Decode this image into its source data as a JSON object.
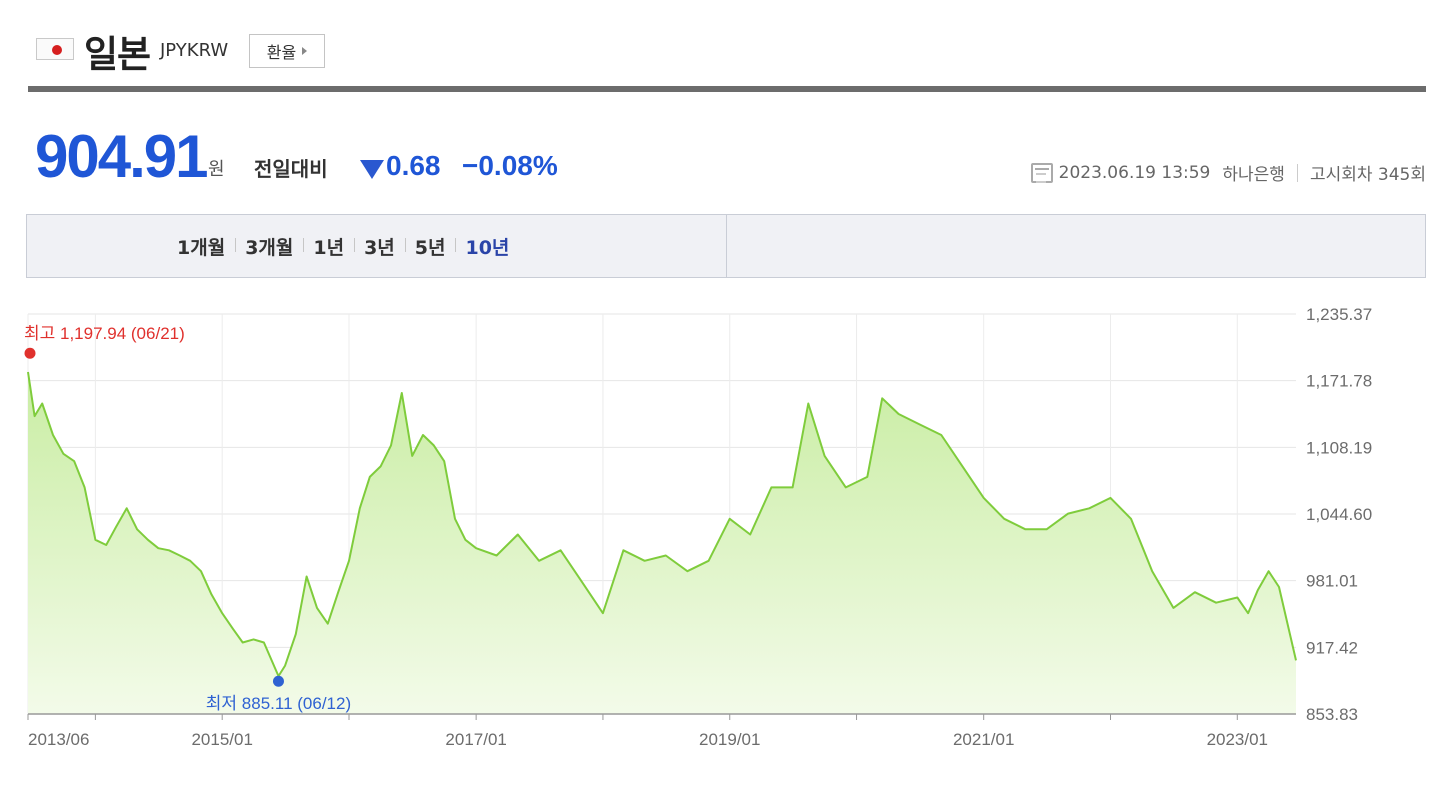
{
  "header": {
    "flag_icon": "japan-flag-icon",
    "country": "일본",
    "code": "JPYKRW",
    "rate_button": "환율"
  },
  "quote": {
    "price": "904.91",
    "unit": "원",
    "compare_label": "전일대비",
    "direction": "down",
    "change": "0.68",
    "change_pct": "−0.08%",
    "change_color": "#1f56d6"
  },
  "meta": {
    "datetime": "2023.06.19 13:59",
    "bank": "하나은행",
    "notice": "고시회차 345회"
  },
  "period_tabs": [
    {
      "label": "1개월",
      "active": false
    },
    {
      "label": "3개월",
      "active": false
    },
    {
      "label": "1년",
      "active": false
    },
    {
      "label": "3년",
      "active": false
    },
    {
      "label": "5년",
      "active": false
    },
    {
      "label": "10년",
      "active": true
    }
  ],
  "chart_data": {
    "type": "area",
    "title": "",
    "xlabel": "",
    "ylabel": "",
    "line_color": "#7fcc3c",
    "fill_top": "#c9eda3",
    "fill_bottom": "#f3fbe9",
    "ylim": [
      853.83,
      1235.37
    ],
    "y_ticks": [
      "1,235.37",
      "1,171.78",
      "1,108.19",
      "1,044.60",
      "981.01",
      "917.42",
      "853.83"
    ],
    "y_tick_values": [
      1235.37,
      1171.78,
      1108.19,
      1044.6,
      981.01,
      917.42,
      853.83
    ],
    "x_range": [
      "2013-06-21",
      "2023-06-19"
    ],
    "x_ticks": [
      "2013/06",
      "2015/01",
      "2017/01",
      "2019/01",
      "2021/01",
      "2023/01"
    ],
    "x_tick_dates": [
      "2013-06-01",
      "2015-01-01",
      "2017-01-01",
      "2019-01-01",
      "2021-01-01",
      "2023-01-01"
    ],
    "x_minor_dates": [
      "2014-01-01",
      "2016-01-01",
      "2018-01-01",
      "2020-01-01",
      "2022-01-01"
    ],
    "grid": true,
    "high": {
      "label": "최고 1,197.94 (06/21)",
      "date": "2013-06-21",
      "value": 1197.94,
      "color": "#e0312d"
    },
    "low": {
      "label": "최저 885.11 (06/12)",
      "date": "2015-06-12",
      "value": 885.11,
      "color": "#2f62d2"
    },
    "series": [
      {
        "dates": [
          "2013-06-21",
          "2013-07-10",
          "2013-08-01",
          "2013-09-01",
          "2013-10-01",
          "2013-11-01",
          "2013-12-01",
          "2014-01-01",
          "2014-02-01",
          "2014-03-01",
          "2014-04-01",
          "2014-05-01",
          "2014-06-01",
          "2014-07-01",
          "2014-08-01",
          "2014-09-01",
          "2014-10-01",
          "2014-11-01",
          "2014-12-01",
          "2015-01-01",
          "2015-02-01",
          "2015-03-01",
          "2015-04-01",
          "2015-05-01",
          "2015-06-12",
          "2015-07-01",
          "2015-08-01",
          "2015-09-01",
          "2015-10-01",
          "2015-11-01",
          "2015-12-01",
          "2016-01-01",
          "2016-02-01",
          "2016-03-01",
          "2016-04-01",
          "2016-05-01",
          "2016-06-01",
          "2016-07-01",
          "2016-08-01",
          "2016-09-01",
          "2016-10-01",
          "2016-11-01",
          "2016-12-01",
          "2017-01-01",
          "2017-03-01",
          "2017-05-01",
          "2017-07-01",
          "2017-09-01",
          "2017-11-01",
          "2018-01-01",
          "2018-03-01",
          "2018-05-01",
          "2018-07-01",
          "2018-09-01",
          "2018-11-01",
          "2019-01-01",
          "2019-03-01",
          "2019-05-01",
          "2019-07-01",
          "2019-08-15",
          "2019-10-01",
          "2019-12-01",
          "2020-02-01",
          "2020-03-15",
          "2020-05-01",
          "2020-07-01",
          "2020-09-01",
          "2020-11-01",
          "2021-01-01",
          "2021-03-01",
          "2021-05-01",
          "2021-07-01",
          "2021-09-01",
          "2021-11-01",
          "2022-01-01",
          "2022-03-01",
          "2022-05-01",
          "2022-07-01",
          "2022-09-01",
          "2022-11-01",
          "2023-01-01",
          "2023-02-01",
          "2023-03-01",
          "2023-04-01",
          "2023-05-01",
          "2023-06-19"
        ],
        "values": [
          1180,
          1138,
          1150,
          1120,
          1102,
          1095,
          1070,
          1020,
          1015,
          1032,
          1050,
          1030,
          1020,
          1012,
          1010,
          1005,
          1000,
          990,
          968,
          950,
          935,
          922,
          925,
          922,
          890,
          900,
          930,
          985,
          955,
          940,
          970,
          1000,
          1050,
          1080,
          1090,
          1110,
          1160,
          1100,
          1120,
          1110,
          1095,
          1040,
          1020,
          1012,
          1005,
          1025,
          1000,
          1010,
          980,
          950,
          1010,
          1000,
          1005,
          990,
          1000,
          1040,
          1025,
          1070,
          1070,
          1150,
          1100,
          1070,
          1080,
          1155,
          1140,
          1130,
          1120,
          1090,
          1060,
          1040,
          1030,
          1030,
          1045,
          1050,
          1060,
          1040,
          990,
          955,
          970,
          960,
          965,
          950,
          972,
          990,
          975,
          905
        ]
      }
    ]
  }
}
